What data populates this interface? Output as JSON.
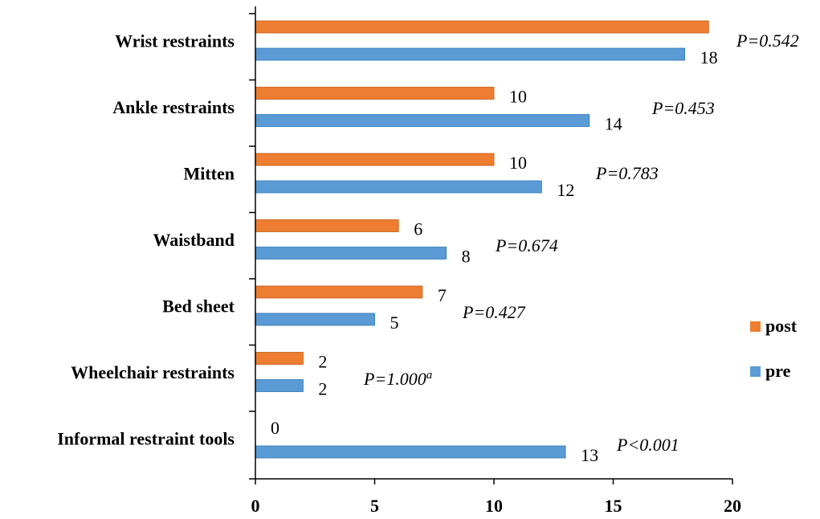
{
  "chart_data": {
    "type": "bar",
    "orientation": "horizontal",
    "categories": [
      "Wrist restraints",
      "Ankle restraints",
      "Mitten",
      "Waistband",
      "Bed sheet",
      "Wheelchair restraints",
      "Informal restraint tools"
    ],
    "series": [
      {
        "name": "post",
        "color": "#ED7D31",
        "values": [
          19,
          10,
          10,
          6,
          7,
          2,
          0
        ],
        "labels": [
          "",
          "10",
          "10",
          "6",
          "7",
          "2",
          "0"
        ]
      },
      {
        "name": "pre",
        "color": "#5B9BD5",
        "values": [
          18,
          14,
          12,
          8,
          5,
          2,
          13
        ],
        "labels": [
          "18",
          "14",
          "12",
          "8",
          "5",
          "2",
          "13"
        ]
      }
    ],
    "p_values": [
      {
        "text": "P=0.542",
        "sup": ""
      },
      {
        "text": "P=0.453",
        "sup": ""
      },
      {
        "text": "P=0.783",
        "sup": ""
      },
      {
        "text": "P=0.674",
        "sup": ""
      },
      {
        "text": "P=0.427",
        "sup": ""
      },
      {
        "text": "P=1.000",
        "sup": "a"
      },
      {
        "text": "P<0.001",
        "sup": ""
      }
    ],
    "x_ticks": [
      0,
      5,
      10,
      15,
      20
    ],
    "xlim": [
      0,
      20
    ],
    "grid": false,
    "legend_position": "right",
    "title": "",
    "xlabel": "",
    "ylabel": ""
  }
}
